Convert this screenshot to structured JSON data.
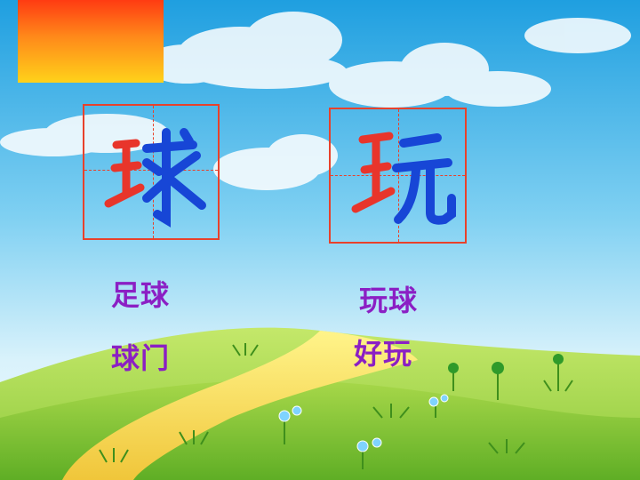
{
  "slide": {
    "characters": [
      {
        "char": "球",
        "left_color": "#e8352b",
        "right_color": "#1746d6"
      },
      {
        "char": "玩",
        "left_color": "#e8352b",
        "right_color": "#1746d6"
      }
    ],
    "words": [
      "足球",
      "球门",
      "玩球",
      "好玩"
    ],
    "colors": {
      "word_text": "#8b1fc4",
      "grid_line": "#e8412b",
      "sky_top": "#2aa9e6",
      "grass": "#7cc42a"
    }
  }
}
